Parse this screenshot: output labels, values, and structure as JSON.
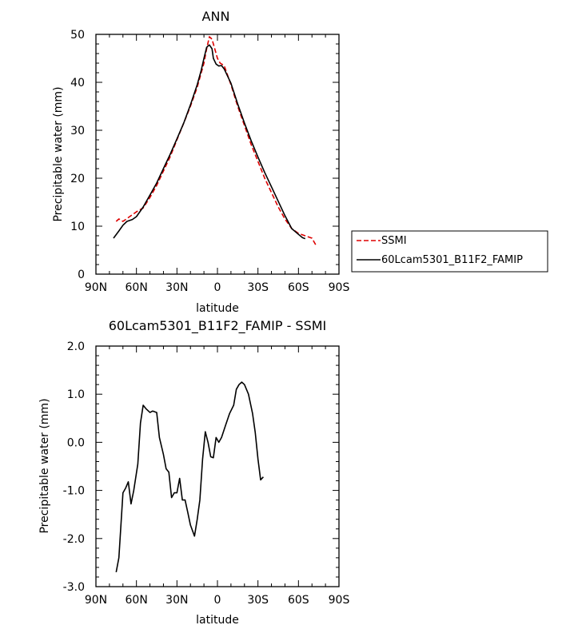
{
  "chart_data": [
    {
      "type": "line",
      "title": "ANN",
      "xlabel": "latitude",
      "ylabel": "Precipitable water (mm)",
      "xlim": [
        90,
        -90
      ],
      "ylim": [
        0,
        50
      ],
      "x_ticks": [
        90,
        60,
        30,
        0,
        -30,
        -60,
        -90
      ],
      "x_tick_labels": [
        "90N",
        "60N",
        "30N",
        "0",
        "30S",
        "60S",
        "90S"
      ],
      "y_ticks": [
        0,
        10,
        20,
        30,
        40,
        50
      ],
      "y_tick_labels": [
        "0",
        "10",
        "20",
        "30",
        "40",
        "50"
      ],
      "legend_position": "right",
      "series": [
        {
          "name": "SSMI",
          "color": "#dd0000",
          "dash": "dashed",
          "points": [
            [
              75,
              11
            ],
            [
              73,
              11.5
            ],
            [
              70,
              11
            ],
            [
              65,
              12
            ],
            [
              60,
              13
            ],
            [
              55,
              13.8
            ],
            [
              50,
              16
            ],
            [
              45,
              18.5
            ],
            [
              40,
              21.5
            ],
            [
              35,
              24.5
            ],
            [
              30,
              28
            ],
            [
              25,
              31.5
            ],
            [
              20,
              35
            ],
            [
              15,
              39
            ],
            [
              10,
              44
            ],
            [
              8,
              47
            ],
            [
              6,
              49.5
            ],
            [
              4,
              49
            ],
            [
              2,
              47
            ],
            [
              0,
              45
            ],
            [
              -2,
              44
            ],
            [
              -5,
              43.5
            ],
            [
              -10,
              39.5
            ],
            [
              -15,
              35
            ],
            [
              -20,
              31
            ],
            [
              -25,
              27
            ],
            [
              -30,
              23.5
            ],
            [
              -35,
              20
            ],
            [
              -40,
              17
            ],
            [
              -45,
              14
            ],
            [
              -50,
              11.5
            ],
            [
              -55,
              9.5
            ],
            [
              -60,
              8.5
            ],
            [
              -65,
              8
            ],
            [
              -70,
              7.5
            ],
            [
              -73,
              6
            ]
          ]
        },
        {
          "name": "60Lcam5301_B11F2_FAMIP",
          "color": "#000000",
          "dash": "solid",
          "points": [
            [
              77,
              7.5
            ],
            [
              73,
              9
            ],
            [
              70,
              10.2
            ],
            [
              67,
              11
            ],
            [
              63,
              11.4
            ],
            [
              60,
              12
            ],
            [
              55,
              14
            ],
            [
              50,
              16.5
            ],
            [
              45,
              19
            ],
            [
              40,
              22
            ],
            [
              35,
              25
            ],
            [
              30,
              28.2
            ],
            [
              25,
              31.5
            ],
            [
              20,
              35.3
            ],
            [
              15,
              39.5
            ],
            [
              12,
              42.5
            ],
            [
              10,
              45
            ],
            [
              8,
              47.3
            ],
            [
              6,
              47.8
            ],
            [
              4,
              47
            ],
            [
              3,
              45
            ],
            [
              1,
              43.8
            ],
            [
              -1,
              43.4
            ],
            [
              -3,
              43.5
            ],
            [
              -5,
              42.8
            ],
            [
              -10,
              39.8
            ],
            [
              -15,
              35.5
            ],
            [
              -20,
              31.5
            ],
            [
              -25,
              27.8
            ],
            [
              -30,
              24.4
            ],
            [
              -35,
              21.2
            ],
            [
              -40,
              18.2
            ],
            [
              -45,
              15.2
            ],
            [
              -50,
              12.2
            ],
            [
              -55,
              9.5
            ],
            [
              -60,
              8.3
            ],
            [
              -63,
              7.6
            ],
            [
              -65,
              7.4
            ]
          ]
        }
      ]
    },
    {
      "type": "line",
      "title": "60Lcam5301_B11F2_FAMIP - SSMI",
      "xlabel": "latitude",
      "ylabel": "Precipitable water (mm)",
      "xlim": [
        90,
        -90
      ],
      "ylim": [
        -3,
        2
      ],
      "x_ticks": [
        90,
        60,
        30,
        0,
        -30,
        -60,
        -90
      ],
      "x_tick_labels": [
        "90N",
        "60N",
        "30N",
        "0",
        "30S",
        "60S",
        "90S"
      ],
      "y_ticks": [
        -3,
        -2,
        -1,
        0,
        1,
        2
      ],
      "y_tick_labels": [
        "-3.0",
        "-2.0",
        "-1.0",
        "0.0",
        "1.0",
        "2.0"
      ],
      "series": [
        {
          "name": "",
          "color": "#000000",
          "dash": "solid",
          "points": [
            [
              75,
              -2.7
            ],
            [
              73,
              -2.4
            ],
            [
              70,
              -1.05
            ],
            [
              68,
              -0.95
            ],
            [
              66,
              -0.82
            ],
            [
              64,
              -1.28
            ],
            [
              62,
              -1.0
            ],
            [
              59,
              -0.45
            ],
            [
              57,
              0.4
            ],
            [
              55,
              0.77
            ],
            [
              53,
              0.7
            ],
            [
              50,
              0.62
            ],
            [
              48,
              0.65
            ],
            [
              45,
              0.62
            ],
            [
              43,
              0.1
            ],
            [
              40,
              -0.25
            ],
            [
              38,
              -0.55
            ],
            [
              36,
              -0.62
            ],
            [
              34,
              -1.15
            ],
            [
              32,
              -1.05
            ],
            [
              30,
              -1.05
            ],
            [
              28,
              -0.75
            ],
            [
              26,
              -1.2
            ],
            [
              24,
              -1.2
            ],
            [
              22,
              -1.45
            ],
            [
              20,
              -1.72
            ],
            [
              17,
              -1.95
            ],
            [
              15,
              -1.6
            ],
            [
              13,
              -1.2
            ],
            [
              11,
              -0.35
            ],
            [
              9,
              0.22
            ],
            [
              7,
              0.0
            ],
            [
              5,
              -0.3
            ],
            [
              3,
              -0.32
            ],
            [
              1,
              0.1
            ],
            [
              -1,
              0.0
            ],
            [
              -3,
              0.1
            ],
            [
              -6,
              0.35
            ],
            [
              -9,
              0.6
            ],
            [
              -12,
              0.77
            ],
            [
              -14,
              1.1
            ],
            [
              -16,
              1.2
            ],
            [
              -18,
              1.25
            ],
            [
              -20,
              1.2
            ],
            [
              -23,
              1.0
            ],
            [
              -26,
              0.6
            ],
            [
              -28,
              0.2
            ],
            [
              -30,
              -0.35
            ],
            [
              -32,
              -0.78
            ],
            [
              -34,
              -0.72
            ]
          ]
        }
      ]
    }
  ]
}
